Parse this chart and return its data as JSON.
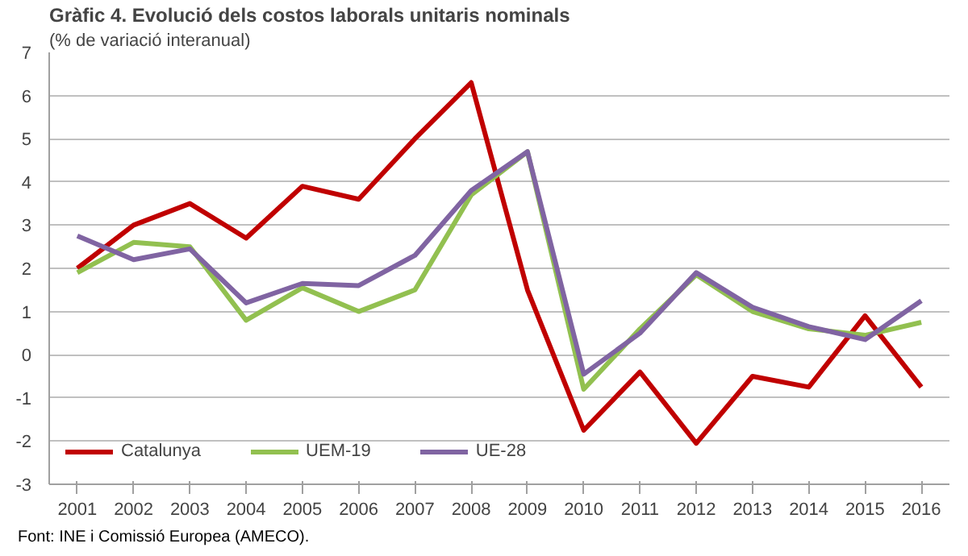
{
  "chart_data": {
    "type": "line",
    "title": "Gràfic 4. Evolució dels costos laborals unitaris nominals",
    "subtitle": "(% de variació interanual)",
    "categories": [
      "2001",
      "2002",
      "2003",
      "2004",
      "2005",
      "2006",
      "2007",
      "2008",
      "2009",
      "2010",
      "2011",
      "2012",
      "2013",
      "2014",
      "2015",
      "2016"
    ],
    "series": [
      {
        "name": "Catalunya",
        "color": "#c00000",
        "values": [
          2.0,
          3.0,
          3.5,
          2.7,
          3.9,
          3.6,
          5.0,
          6.3,
          1.5,
          -1.75,
          -0.4,
          -2.05,
          -0.5,
          -0.75,
          0.9,
          -0.75
        ]
      },
      {
        "name": "UEM-19",
        "color": "#92c050",
        "values": [
          1.9,
          2.6,
          2.5,
          0.8,
          1.55,
          1.0,
          1.5,
          3.7,
          4.7,
          -0.8,
          0.6,
          1.85,
          1.0,
          0.6,
          0.45,
          0.75
        ]
      },
      {
        "name": "UE-28",
        "color": "#8064a2",
        "values": [
          2.75,
          2.2,
          2.45,
          1.2,
          1.65,
          1.6,
          2.3,
          3.8,
          4.7,
          -0.45,
          0.5,
          1.9,
          1.1,
          0.65,
          0.35,
          1.25
        ]
      }
    ],
    "ylim": [
      -3,
      7
    ],
    "yticks": [
      -3,
      -2,
      -1,
      0,
      1,
      2,
      3,
      4,
      5,
      6,
      7
    ],
    "grid": "y",
    "legend": "bottom left",
    "marker": "none",
    "line_style": "solid",
    "annotations": [
      "Font:  INE i  Comissió Europea (AMECO)."
    ]
  }
}
